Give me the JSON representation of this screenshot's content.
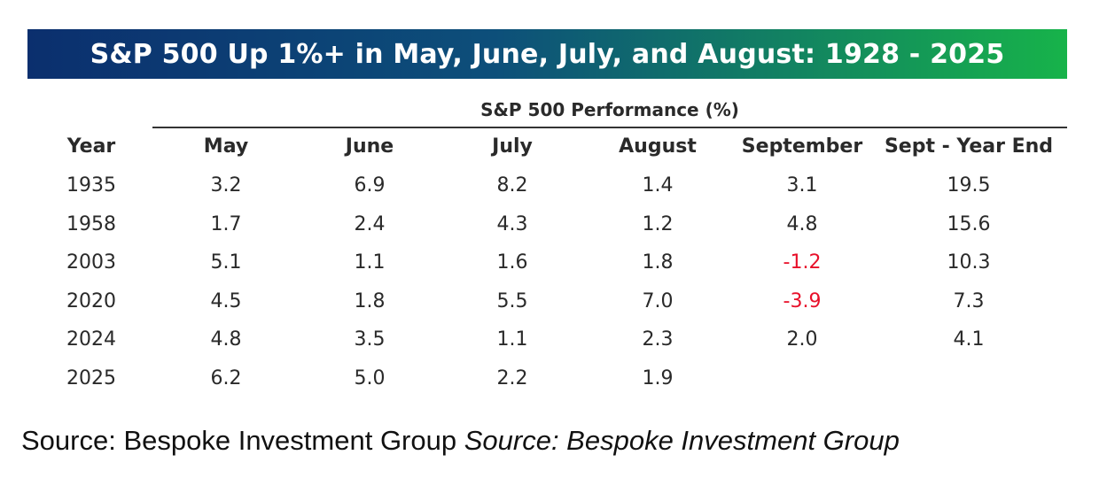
{
  "banner": {
    "title": "S&P 500 Up 1%+ in May, June, July, and August: 1928 - 2025",
    "gradient_start": "#0b2f6e",
    "gradient_end": "#17b34a"
  },
  "chart_data": {
    "type": "table",
    "title": "S&P 500 Up 1%+ in May, June, July, and August: 1928 - 2025",
    "subtitle": "S&P 500 Performance (%)",
    "columns": [
      "Year",
      "May",
      "June",
      "July",
      "August",
      "September",
      "Sept - Year End"
    ],
    "rows": [
      {
        "year": "1935",
        "cells": [
          "3.2",
          "6.9",
          "8.2",
          "1.4",
          "3.1",
          "19.5"
        ]
      },
      {
        "year": "1958",
        "cells": [
          "1.7",
          "2.4",
          "4.3",
          "1.2",
          "4.8",
          "15.6"
        ]
      },
      {
        "year": "2003",
        "cells": [
          "5.1",
          "1.1",
          "1.6",
          "1.8",
          "-1.2",
          "10.3"
        ]
      },
      {
        "year": "2020",
        "cells": [
          "4.5",
          "1.8",
          "5.5",
          "7.0",
          "-3.9",
          "7.3"
        ]
      },
      {
        "year": "2024",
        "cells": [
          "4.8",
          "3.5",
          "1.1",
          "2.3",
          "2.0",
          "4.1"
        ]
      },
      {
        "year": "2025",
        "cells": [
          "6.2",
          "5.0",
          "2.2",
          "1.9",
          "",
          ""
        ]
      }
    ],
    "negative_color": "#e8102a"
  },
  "footer": {
    "source_plain": "Source: Bespoke Investment Group",
    "source_italic": "Source: Bespoke Investment Group"
  }
}
